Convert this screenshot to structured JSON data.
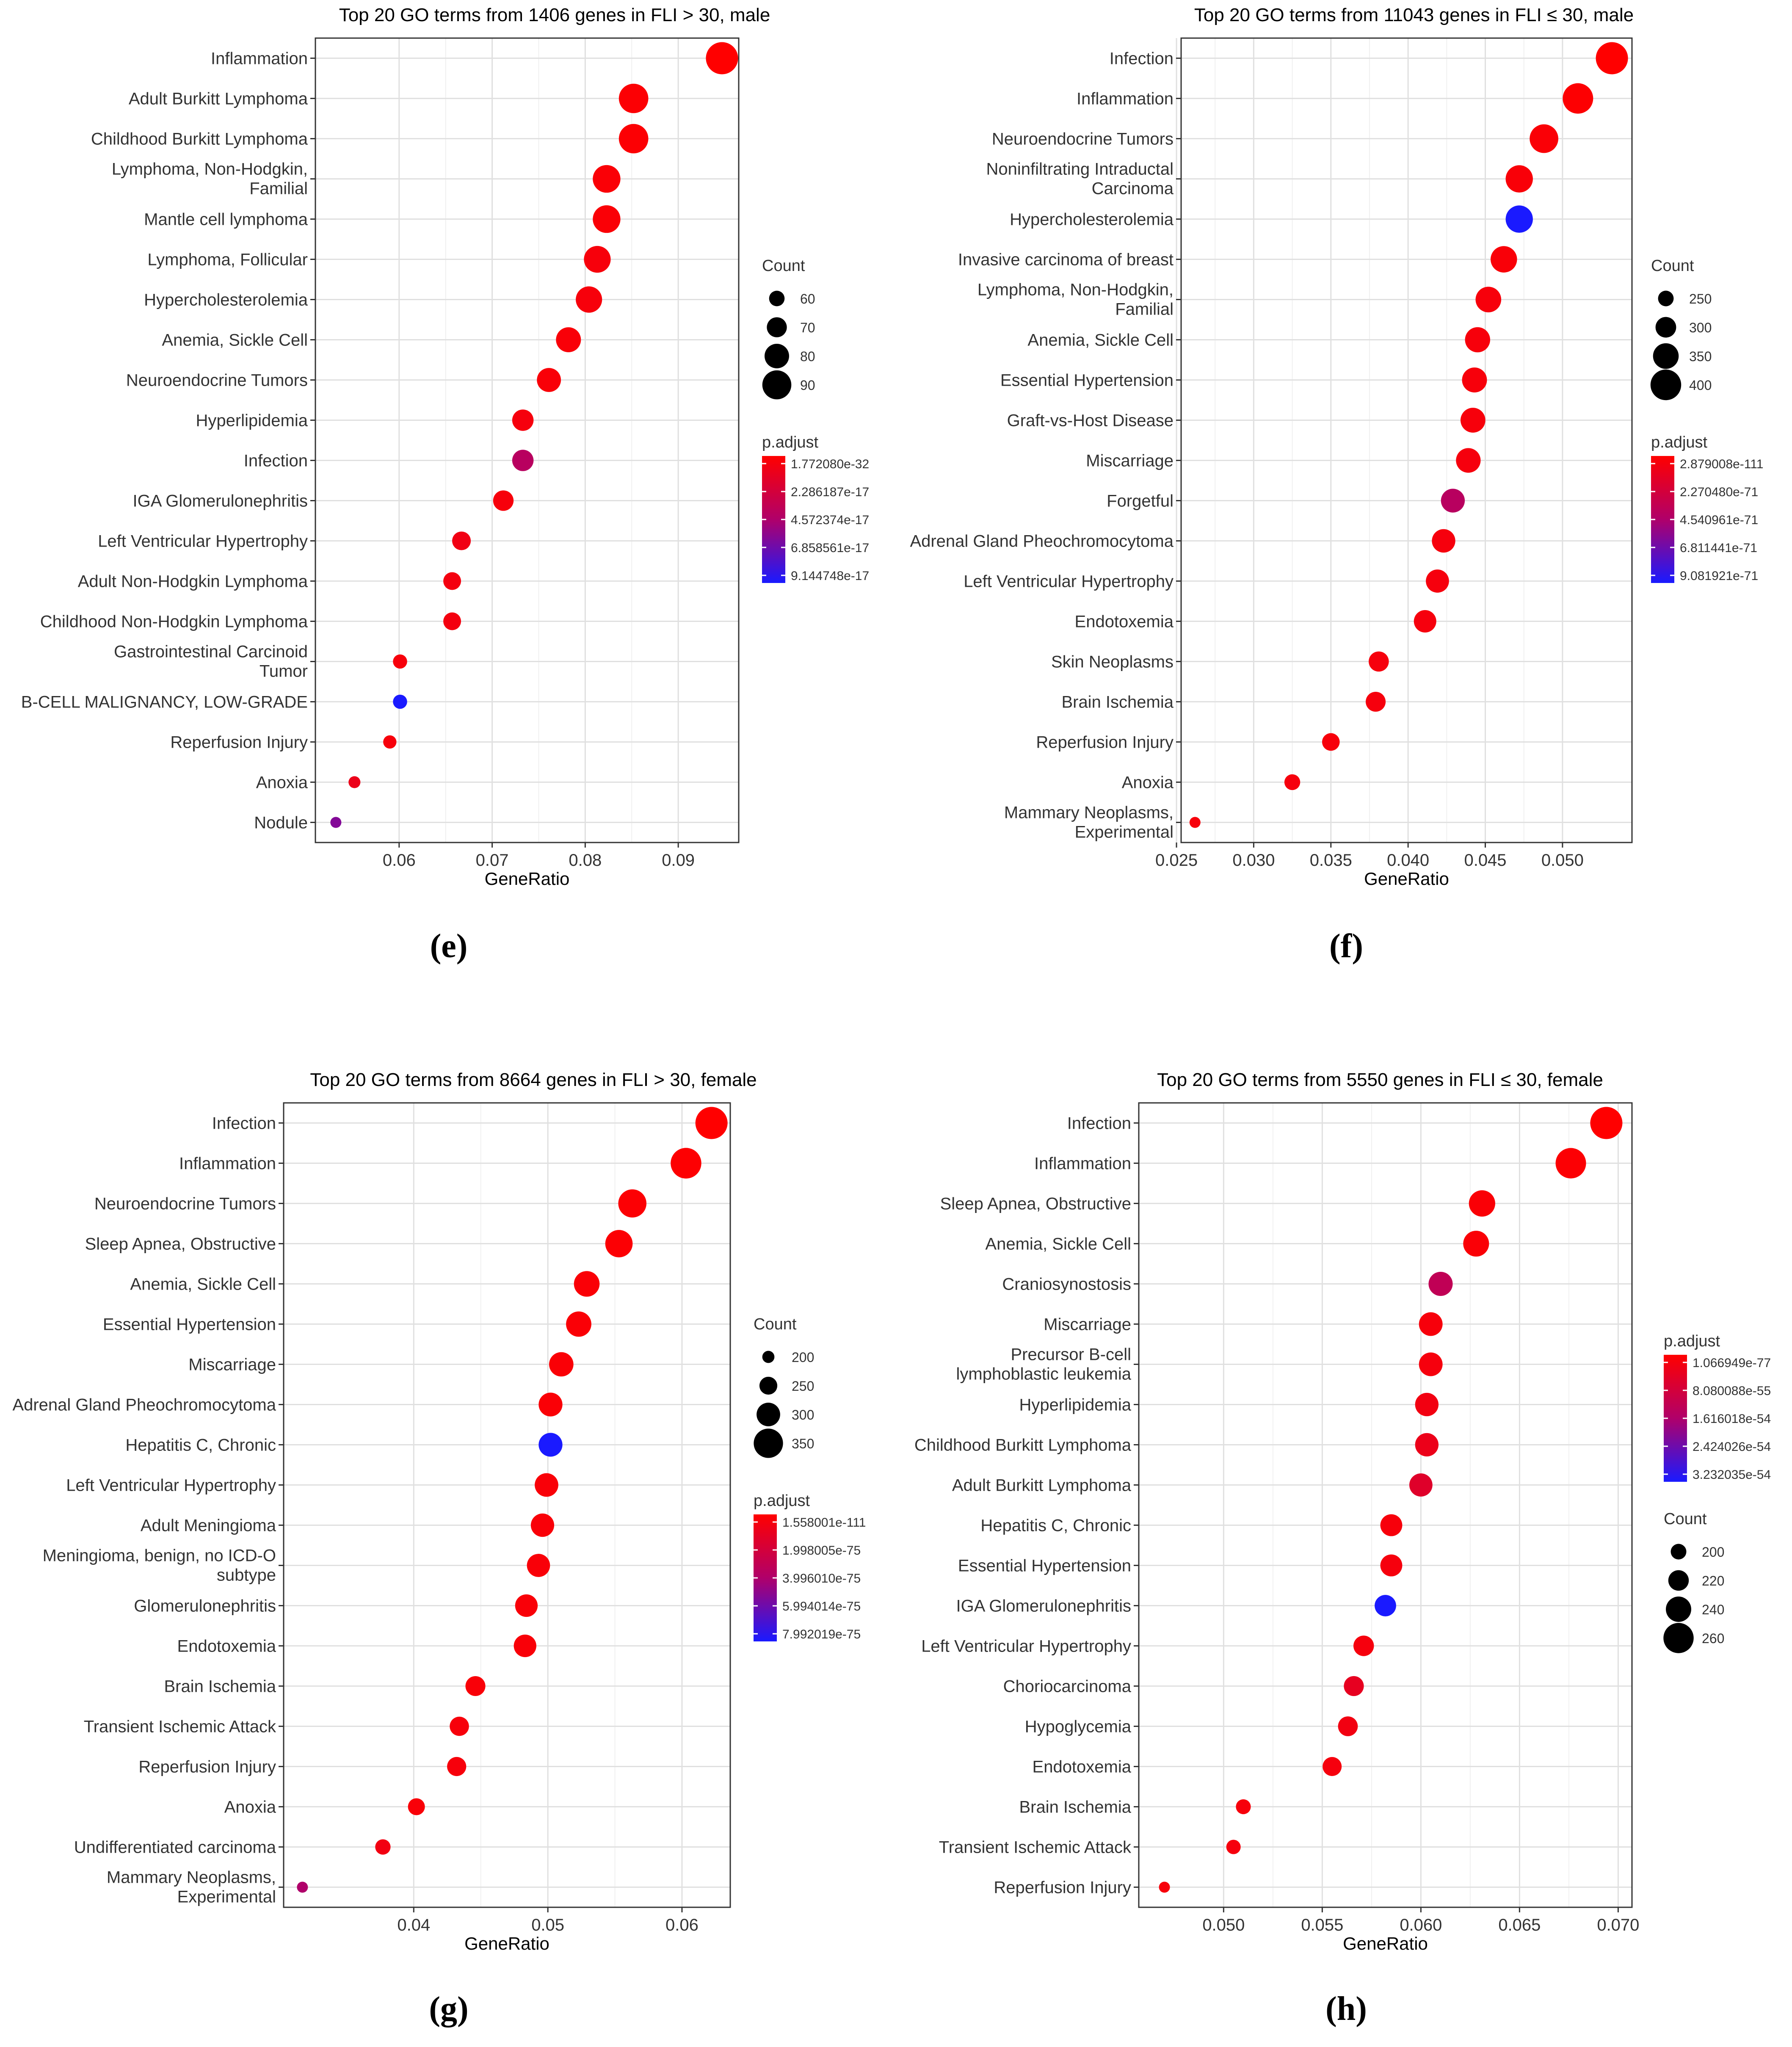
{
  "chart_data": [
    {
      "type": "scatter",
      "panel": "e",
      "title": "Top 20 GO terms from  1406 genes in FLI > 30, male",
      "xlabel": "GeneRatio",
      "xlim": [
        0.051,
        0.0965
      ],
      "xticks": [
        0.06,
        0.07,
        0.08,
        0.09
      ],
      "xtick_labels": [
        "0.06",
        "0.07",
        "0.08",
        "0.09"
      ],
      "caption": "(e)",
      "terms": [
        "Inflammation",
        "Adult Burkitt Lymphoma",
        "Childhood Burkitt Lymphoma",
        "Lymphoma, Non-Hodgkin, Familial",
        "Mantle cell lymphoma",
        "Lymphoma, Follicular",
        "Hypercholesterolemia",
        "Anemia, Sickle Cell",
        "Neuroendocrine Tumors",
        "Hyperlipidemia",
        "Infection",
        "IGA Glomerulonephritis",
        "Left Ventricular Hypertrophy",
        "Adult Non-Hodgkin Lymphoma",
        "Childhood Non-Hodgkin Lymphoma",
        "Gastrointestinal Carcinoid Tumor",
        "B-CELL MALIGNANCY, LOW-GRADE",
        "Reperfusion Injury",
        "Anoxia",
        "Nodule"
      ],
      "labels": [
        [
          "Inflammation"
        ],
        [
          "Adult Burkitt Lymphoma"
        ],
        [
          "Childhood Burkitt Lymphoma"
        ],
        [
          "Lymphoma, Non-Hodgkin,",
          "Familial"
        ],
        [
          "Mantle cell lymphoma"
        ],
        [
          "Lymphoma, Follicular"
        ],
        [
          "Hypercholesterolemia"
        ],
        [
          "Anemia, Sickle Cell"
        ],
        [
          "Neuroendocrine Tumors"
        ],
        [
          "Hyperlipidemia"
        ],
        [
          "Infection"
        ],
        [
          "IGA Glomerulonephritis"
        ],
        [
          "Left Ventricular Hypertrophy"
        ],
        [
          "Adult Non-Hodgkin Lymphoma"
        ],
        [
          "Childhood Non-Hodgkin Lymphoma"
        ],
        [
          "Gastrointestinal Carcinoid",
          "Tumor"
        ],
        [
          "B-CELL MALIGNANCY, LOW-GRADE"
        ],
        [
          "Reperfusion Injury"
        ],
        [
          "Anoxia"
        ],
        [
          "Nodule"
        ]
      ],
      "gene_ratio": [
        0.0947,
        0.0852,
        0.0852,
        0.0823,
        0.0823,
        0.0813,
        0.0804,
        0.0782,
        0.0761,
        0.0733,
        0.0733,
        0.0712,
        0.0667,
        0.0657,
        0.0657,
        0.0601,
        0.0601,
        0.059,
        0.0552,
        0.0532
      ],
      "count": [
        97,
        91,
        91,
        87,
        87,
        85,
        84,
        81,
        79,
        73,
        73,
        71,
        67,
        65,
        65,
        57,
        57,
        55,
        52,
        50
      ],
      "p_adjust_norm": [
        0.0,
        0.02,
        0.02,
        0.03,
        0.03,
        0.05,
        0.05,
        0.04,
        0.04,
        0.06,
        0.45,
        0.05,
        0.09,
        0.07,
        0.07,
        0.05,
        1.0,
        0.05,
        0.12,
        0.65
      ],
      "size_legend": {
        "title": "Count",
        "values": [
          60,
          70,
          80,
          90
        ],
        "labels": [
          "60",
          "70",
          "80",
          "90"
        ],
        "min": 50,
        "max": 97
      },
      "color_legend": {
        "title": "p.adjust",
        "labels": [
          "1.772080e-32",
          "2.286187e-17",
          "4.572374e-17",
          "6.858561e-17",
          "9.144748e-17"
        ]
      },
      "color_first": "size"
    },
    {
      "type": "scatter",
      "panel": "f",
      "title": "Top 20 GO terms from 11043 genes in FLI ≤ 30, male",
      "xlabel": "GeneRatio",
      "xlim": [
        0.0253,
        0.0545
      ],
      "xticks": [
        0.025,
        0.03,
        0.035,
        0.04,
        0.045,
        0.05
      ],
      "xtick_labels": [
        "0.025",
        "0.030",
        "0.035",
        "0.040",
        "0.045",
        "0.050"
      ],
      "caption": "(f)",
      "terms": [
        "Infection",
        "Inflammation",
        "Neuroendocrine Tumors",
        "Noninfiltrating Intraductal Carcinoma",
        "Hypercholesterolemia",
        "Invasive carcinoma of breast",
        "Lymphoma, Non-Hodgkin, Familial",
        "Anemia, Sickle Cell",
        "Essential Hypertension",
        "Graft-vs-Host Disease",
        "Miscarriage",
        "Forgetful",
        "Adrenal Gland Pheochromocytoma",
        "Left Ventricular Hypertrophy",
        "Endotoxemia",
        "Skin Neoplasms",
        "Brain Ischemia",
        "Reperfusion Injury",
        "Anoxia",
        "Mammary Neoplasms, Experimental"
      ],
      "labels": [
        [
          "Infection"
        ],
        [
          "Inflammation"
        ],
        [
          "Neuroendocrine Tumors"
        ],
        [
          "Noninfiltrating Intraductal",
          "Carcinoma"
        ],
        [
          "Hypercholesterolemia"
        ],
        [
          "Invasive carcinoma of breast"
        ],
        [
          "Lymphoma, Non-Hodgkin,",
          "Familial"
        ],
        [
          "Anemia, Sickle Cell"
        ],
        [
          "Essential Hypertension"
        ],
        [
          "Graft-vs-Host Disease"
        ],
        [
          "Miscarriage"
        ],
        [
          "Forgetful"
        ],
        [
          "Adrenal Gland Pheochromocytoma"
        ],
        [
          "Left Ventricular Hypertrophy"
        ],
        [
          "Endotoxemia"
        ],
        [
          "Skin Neoplasms"
        ],
        [
          "Brain Ischemia"
        ],
        [
          "Reperfusion Injury"
        ],
        [
          "Anoxia"
        ],
        [
          "Mammary Neoplasms,",
          "Experimental"
        ]
      ],
      "gene_ratio": [
        0.0532,
        0.051,
        0.0488,
        0.0472,
        0.0472,
        0.0462,
        0.0452,
        0.0445,
        0.0443,
        0.0442,
        0.0439,
        0.0429,
        0.0423,
        0.0419,
        0.0411,
        0.0381,
        0.0379,
        0.035,
        0.0325,
        0.0262
      ],
      "count": [
        415,
        398,
        380,
        366,
        366,
        358,
        350,
        345,
        343,
        342,
        340,
        332,
        328,
        325,
        318,
        295,
        293,
        270,
        252,
        204
      ],
      "p_adjust_norm": [
        0.0,
        0.01,
        0.03,
        0.04,
        1.0,
        0.04,
        0.05,
        0.05,
        0.05,
        0.05,
        0.06,
        0.45,
        0.06,
        0.06,
        0.06,
        0.06,
        0.06,
        0.05,
        0.06,
        0.05
      ],
      "size_legend": {
        "title": "Count",
        "values": [
          250,
          300,
          350,
          400
        ],
        "labels": [
          "250",
          "300",
          "350",
          "400"
        ],
        "min": 204,
        "max": 415
      },
      "color_legend": {
        "title": "p.adjust",
        "labels": [
          "2.879008e-111",
          "2.270480e-71",
          "4.540961e-71",
          "6.811441e-71",
          "9.081921e-71"
        ]
      },
      "color_first": "size"
    },
    {
      "type": "scatter",
      "panel": "g",
      "title": "Top 20 GO terms from 8664 genes in FLI > 30, female",
      "xlabel": "GeneRatio",
      "xlim": [
        0.0303,
        0.0636
      ],
      "xticks": [
        0.04,
        0.05,
        0.06
      ],
      "xtick_labels": [
        "0.04",
        "0.05",
        "0.06"
      ],
      "caption": "(g)",
      "terms": [
        "Infection",
        "Inflammation",
        "Neuroendocrine Tumors",
        "Sleep Apnea, Obstructive",
        "Anemia, Sickle Cell",
        "Essential Hypertension",
        "Miscarriage",
        "Adrenal Gland Pheochromocytoma",
        "Hepatitis C, Chronic",
        "Left Ventricular Hypertrophy",
        "Adult Meningioma",
        "Meningioma, benign, no ICD-O subtype",
        "Glomerulonephritis",
        "Endotoxemia",
        "Brain Ischemia",
        "Transient Ischemic Attack",
        "Reperfusion Injury",
        "Anoxia",
        "Undifferentiated carcinoma",
        "Mammary Neoplasms, Experimental"
      ],
      "labels": [
        [
          "Infection"
        ],
        [
          "Inflammation"
        ],
        [
          "Neuroendocrine Tumors"
        ],
        [
          "Sleep Apnea, Obstructive"
        ],
        [
          "Anemia, Sickle Cell"
        ],
        [
          "Essential Hypertension"
        ],
        [
          "Miscarriage"
        ],
        [
          "Adrenal Gland Pheochromocytoma"
        ],
        [
          "Hepatitis C, Chronic"
        ],
        [
          "Left Ventricular Hypertrophy"
        ],
        [
          "Adult Meningioma"
        ],
        [
          "Meningioma, benign, no ICD-O",
          "subtype"
        ],
        [
          "Glomerulonephritis"
        ],
        [
          "Endotoxemia"
        ],
        [
          "Brain Ischemia"
        ],
        [
          "Transient Ischemic Attack"
        ],
        [
          "Reperfusion Injury"
        ],
        [
          "Anoxia"
        ],
        [
          "Undifferentiated carcinoma"
        ],
        [
          "Mammary Neoplasms,",
          "Experimental"
        ]
      ],
      "gene_ratio": [
        0.0622,
        0.0603,
        0.0563,
        0.0553,
        0.0529,
        0.0523,
        0.051,
        0.0502,
        0.0502,
        0.0499,
        0.0496,
        0.0493,
        0.0484,
        0.0483,
        0.0446,
        0.0434,
        0.0432,
        0.0402,
        0.0377,
        0.0317
      ],
      "count": [
        375,
        362,
        340,
        333,
        318,
        315,
        307,
        302,
        302,
        300,
        298,
        296,
        291,
        291,
        268,
        262,
        261,
        242,
        228,
        190
      ],
      "p_adjust_norm": [
        0.0,
        0.01,
        0.02,
        0.02,
        0.03,
        0.03,
        0.03,
        0.03,
        1.0,
        0.04,
        0.04,
        0.04,
        0.04,
        0.04,
        0.04,
        0.05,
        0.05,
        0.04,
        0.08,
        0.5
      ],
      "size_legend": {
        "title": "Count",
        "values": [
          200,
          250,
          300,
          350
        ],
        "labels": [
          "200",
          "250",
          "300",
          "350"
        ],
        "min": 190,
        "max": 375
      },
      "color_legend": {
        "title": "p.adjust",
        "labels": [
          "1.558001e-111",
          "1.998005e-75",
          "3.996010e-75",
          "5.994014e-75",
          "7.992019e-75"
        ]
      },
      "color_first": "size"
    },
    {
      "type": "scatter",
      "panel": "h",
      "title": "Top 20 GO terms from 5550 genes in FLI ≤ 30, female",
      "xlabel": "GeneRatio",
      "xlim": [
        0.0457,
        0.0707
      ],
      "xticks": [
        0.05,
        0.055,
        0.06,
        0.065,
        0.07
      ],
      "xtick_labels": [
        "0.050",
        "0.055",
        "0.060",
        "0.065",
        "0.070"
      ],
      "caption": "(h)",
      "terms": [
        "Infection",
        "Inflammation",
        "Sleep Apnea, Obstructive",
        "Anemia, Sickle Cell",
        "Craniosynostosis",
        "Miscarriage",
        "Precursor B-cell lymphoblastic leukemia",
        "Hyperlipidemia",
        "Childhood Burkitt Lymphoma",
        "Adult Burkitt Lymphoma",
        "Hepatitis C, Chronic",
        "Essential Hypertension",
        "IGA Glomerulonephritis",
        "Left Ventricular Hypertrophy",
        "Choriocarcinoma",
        "Hypoglycemia",
        "Endotoxemia",
        "Brain Ischemia",
        "Transient Ischemic Attack",
        "Reperfusion Injury"
      ],
      "labels": [
        [
          "Infection"
        ],
        [
          "Inflammation"
        ],
        [
          "Sleep Apnea, Obstructive"
        ],
        [
          "Anemia, Sickle Cell"
        ],
        [
          "Craniosynostosis"
        ],
        [
          "Miscarriage"
        ],
        [
          "Precursor B-cell",
          "lymphoblastic leukemia"
        ],
        [
          "Hyperlipidemia"
        ],
        [
          "Childhood Burkitt Lymphoma"
        ],
        [
          "Adult Burkitt Lymphoma"
        ],
        [
          "Hepatitis C, Chronic"
        ],
        [
          "Essential Hypertension"
        ],
        [
          "IGA Glomerulonephritis"
        ],
        [
          "Left Ventricular Hypertrophy"
        ],
        [
          "Choriocarcinoma"
        ],
        [
          "Hypoglycemia"
        ],
        [
          "Endotoxemia"
        ],
        [
          "Brain Ischemia"
        ],
        [
          "Transient Ischemic Attack"
        ],
        [
          "Reperfusion Injury"
        ]
      ],
      "gene_ratio": [
        0.0694,
        0.0676,
        0.0631,
        0.0628,
        0.061,
        0.0605,
        0.0605,
        0.0603,
        0.0603,
        0.06,
        0.0585,
        0.0585,
        0.0582,
        0.0571,
        0.0566,
        0.0563,
        0.0555,
        0.051,
        0.0505,
        0.047
      ],
      "count": [
        268,
        261,
        244,
        242,
        235,
        233,
        233,
        232,
        232,
        231,
        226,
        226,
        224,
        220,
        218,
        217,
        214,
        197,
        195,
        181
      ],
      "p_adjust_norm": [
        0.0,
        0.02,
        0.03,
        0.03,
        0.4,
        0.05,
        0.06,
        0.08,
        0.12,
        0.2,
        0.05,
        0.06,
        1.0,
        0.06,
        0.15,
        0.08,
        0.06,
        0.05,
        0.06,
        0.05
      ],
      "size_legend": {
        "title": "Count",
        "values": [
          200,
          220,
          240,
          260
        ],
        "labels": [
          "200",
          "220",
          "240",
          "260"
        ],
        "min": 181,
        "max": 268
      },
      "color_legend": {
        "title": "p.adjust",
        "labels": [
          "1.066949e-77",
          "8.080088e-55",
          "1.616018e-54",
          "2.424026e-54",
          "3.232035e-54"
        ]
      },
      "color_first": "color"
    }
  ]
}
